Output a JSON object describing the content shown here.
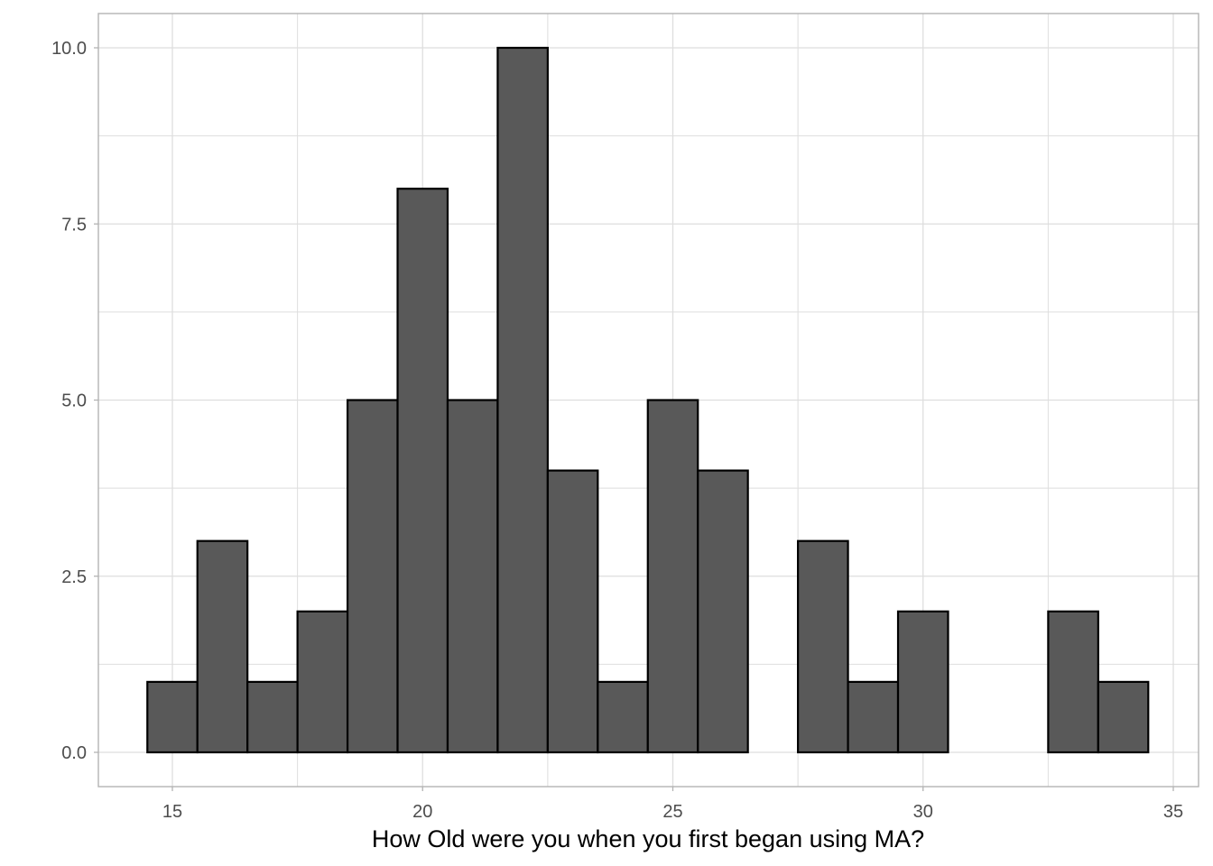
{
  "chart_data": {
    "type": "bar",
    "title": "",
    "xlabel": "How Old were you when you first began using MA?",
    "ylabel": "",
    "x": [
      15,
      16,
      17,
      18,
      19,
      20,
      21,
      22,
      23,
      24,
      25,
      26,
      27,
      28,
      29,
      30,
      31,
      32,
      33,
      34
    ],
    "values": [
      1,
      3,
      1,
      2,
      5,
      8,
      5,
      10,
      4,
      1,
      5,
      4,
      0,
      3,
      1,
      2,
      0,
      0,
      2,
      1
    ],
    "bin_width": 1,
    "xlim": [
      14.5,
      34.5
    ],
    "ylim": [
      0,
      10
    ],
    "x_ticks": [
      15,
      20,
      25,
      30,
      35
    ],
    "x_tick_labels": [
      "15",
      "20",
      "25",
      "30",
      "35"
    ],
    "y_ticks": [
      0,
      2.5,
      5,
      7.5,
      10
    ],
    "y_tick_labels": [
      "0.0",
      "2.5",
      "5.0",
      "7.5",
      "10.0"
    ],
    "grid": true,
    "bar_fill": "#595959",
    "bar_outline": "#000000",
    "grid_color": "#dedede",
    "panel_border_color": "#b3b3b3"
  }
}
